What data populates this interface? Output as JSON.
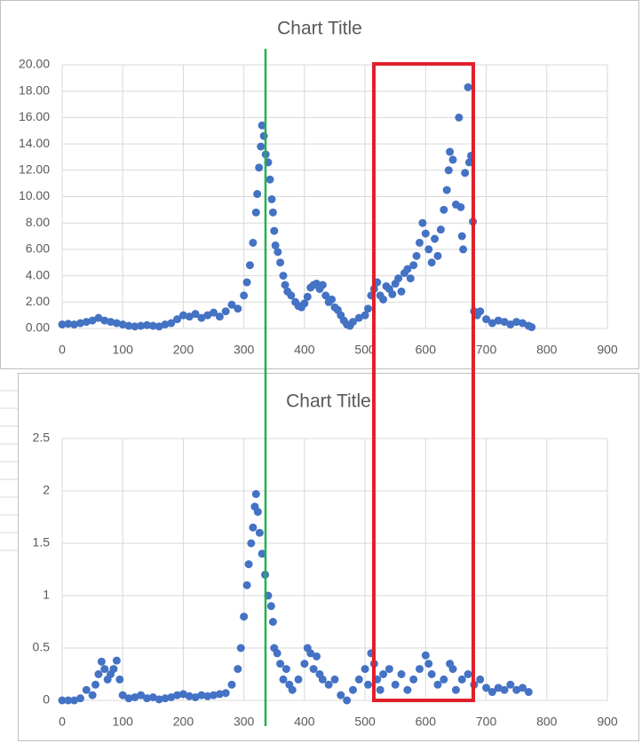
{
  "chart_data": [
    {
      "type": "scatter",
      "title": "Chart Title",
      "color": "#4472c4",
      "grid": true,
      "xlim": [
        0,
        900
      ],
      "xticks": [
        0,
        100,
        200,
        300,
        400,
        500,
        600,
        700,
        800,
        900
      ],
      "ylim": [
        0,
        20
      ],
      "yticks": [
        {
          "value": 0,
          "label": "0.00"
        },
        {
          "value": 2,
          "label": "2.00"
        },
        {
          "value": 4,
          "label": "4.00"
        },
        {
          "value": 6,
          "label": "6.00"
        },
        {
          "value": 8,
          "label": "8.00"
        },
        {
          "value": 10,
          "label": "10.00"
        },
        {
          "value": 12,
          "label": "12.00"
        },
        {
          "value": 14,
          "label": "14.00"
        },
        {
          "value": 16,
          "label": "16.00"
        },
        {
          "value": 18,
          "label": "18.00"
        },
        {
          "value": 20,
          "label": "20.00"
        }
      ],
      "x": [
        0,
        10,
        20,
        30,
        40,
        50,
        60,
        70,
        80,
        90,
        100,
        110,
        120,
        130,
        140,
        150,
        160,
        170,
        180,
        190,
        200,
        210,
        220,
        230,
        240,
        250,
        260,
        270,
        280,
        290,
        300,
        305,
        310,
        315,
        320,
        322,
        325,
        328,
        330,
        333,
        336,
        340,
        343,
        346,
        348,
        350,
        352,
        356,
        360,
        365,
        368,
        372,
        378,
        385,
        390,
        395,
        400,
        405,
        410,
        415,
        420,
        425,
        430,
        435,
        440,
        445,
        450,
        455,
        460,
        465,
        470,
        475,
        480,
        490,
        500,
        505,
        510,
        515,
        520,
        525,
        530,
        535,
        540,
        545,
        550,
        555,
        560,
        565,
        570,
        575,
        580,
        585,
        590,
        595,
        600,
        605,
        610,
        615,
        620,
        625,
        630,
        635,
        638,
        640,
        645,
        650,
        655,
        658,
        660,
        662,
        665,
        670,
        672,
        675,
        678,
        680,
        685,
        690,
        700,
        710,
        720,
        730,
        740,
        750,
        760,
        770,
        775
      ],
      "values": [
        0.3,
        0.35,
        0.3,
        0.4,
        0.5,
        0.6,
        0.8,
        0.6,
        0.5,
        0.4,
        0.3,
        0.2,
        0.15,
        0.2,
        0.25,
        0.2,
        0.15,
        0.3,
        0.4,
        0.7,
        1.0,
        0.9,
        1.1,
        0.8,
        1.0,
        1.2,
        0.9,
        1.3,
        1.8,
        1.5,
        2.5,
        3.5,
        4.8,
        6.5,
        8.8,
        10.2,
        12.2,
        13.8,
        15.4,
        14.6,
        13.2,
        12.6,
        11.3,
        9.8,
        8.8,
        7.4,
        6.3,
        5.8,
        5.0,
        4.0,
        3.3,
        2.8,
        2.5,
        2.0,
        1.7,
        1.6,
        1.9,
        2.4,
        3.1,
        3.3,
        3.4,
        3.0,
        3.3,
        2.5,
        2.0,
        2.2,
        1.6,
        1.4,
        1.0,
        0.6,
        0.3,
        0.2,
        0.5,
        0.8,
        1.0,
        1.5,
        2.5,
        3.0,
        3.5,
        2.5,
        2.2,
        3.2,
        3.0,
        2.6,
        3.4,
        3.8,
        2.8,
        4.2,
        4.5,
        3.8,
        4.8,
        5.5,
        6.5,
        8.0,
        7.2,
        6.0,
        5.0,
        6.8,
        5.5,
        7.5,
        9.0,
        10.5,
        12.0,
        13.4,
        12.8,
        9.4,
        16.0,
        9.2,
        7.0,
        6.0,
        11.8,
        18.3,
        12.6,
        13.1,
        8.1,
        1.3,
        1.0,
        1.3,
        0.7,
        0.4,
        0.6,
        0.5,
        0.3,
        0.5,
        0.4,
        0.2,
        0.1
      ]
    },
    {
      "type": "scatter",
      "title": "Chart Title",
      "color": "#4472c4",
      "grid": true,
      "xlim": [
        0,
        900
      ],
      "xticks": [
        0,
        100,
        200,
        300,
        400,
        500,
        600,
        700,
        800,
        900
      ],
      "ylim": [
        0,
        2.5
      ],
      "yticks": [
        0,
        0.5,
        1,
        1.5,
        2,
        2.5
      ],
      "x": [
        0,
        10,
        20,
        30,
        40,
        50,
        55,
        60,
        65,
        70,
        75,
        80,
        85,
        90,
        95,
        100,
        110,
        120,
        130,
        140,
        150,
        160,
        170,
        180,
        190,
        200,
        210,
        220,
        230,
        240,
        250,
        260,
        270,
        280,
        290,
        295,
        300,
        305,
        308,
        312,
        315,
        318,
        320,
        323,
        326,
        330,
        335,
        340,
        345,
        348,
        350,
        355,
        360,
        365,
        370,
        375,
        380,
        390,
        400,
        405,
        410,
        415,
        420,
        425,
        430,
        440,
        450,
        460,
        470,
        480,
        490,
        500,
        505,
        510,
        515,
        520,
        525,
        530,
        540,
        550,
        560,
        570,
        580,
        590,
        600,
        605,
        610,
        620,
        630,
        640,
        645,
        650,
        660,
        670,
        680,
        690,
        700,
        710,
        720,
        730,
        740,
        750,
        760,
        770
      ],
      "values": [
        0,
        0,
        0,
        0.02,
        0.1,
        0.05,
        0.15,
        0.25,
        0.37,
        0.3,
        0.2,
        0.25,
        0.3,
        0.38,
        0.2,
        0.05,
        0.02,
        0.03,
        0.05,
        0.02,
        0.03,
        0.01,
        0.02,
        0.03,
        0.05,
        0.06,
        0.04,
        0.03,
        0.05,
        0.04,
        0.05,
        0.06,
        0.07,
        0.15,
        0.3,
        0.5,
        0.8,
        1.1,
        1.3,
        1.5,
        1.65,
        1.85,
        1.97,
        1.8,
        1.6,
        1.4,
        1.2,
        1.0,
        0.9,
        0.75,
        0.5,
        0.45,
        0.35,
        0.2,
        0.3,
        0.15,
        0.1,
        0.2,
        0.35,
        0.5,
        0.45,
        0.3,
        0.42,
        0.25,
        0.2,
        0.15,
        0.2,
        0.05,
        0.0,
        0.1,
        0.2,
        0.3,
        0.15,
        0.45,
        0.35,
        0.2,
        0.1,
        0.25,
        0.3,
        0.15,
        0.25,
        0.1,
        0.2,
        0.3,
        0.43,
        0.35,
        0.25,
        0.15,
        0.2,
        0.35,
        0.3,
        0.1,
        0.2,
        0.25,
        0.15,
        0.2,
        0.12,
        0.08,
        0.12,
        0.1,
        0.15,
        0.1,
        0.12,
        0.08
      ]
    }
  ]
}
